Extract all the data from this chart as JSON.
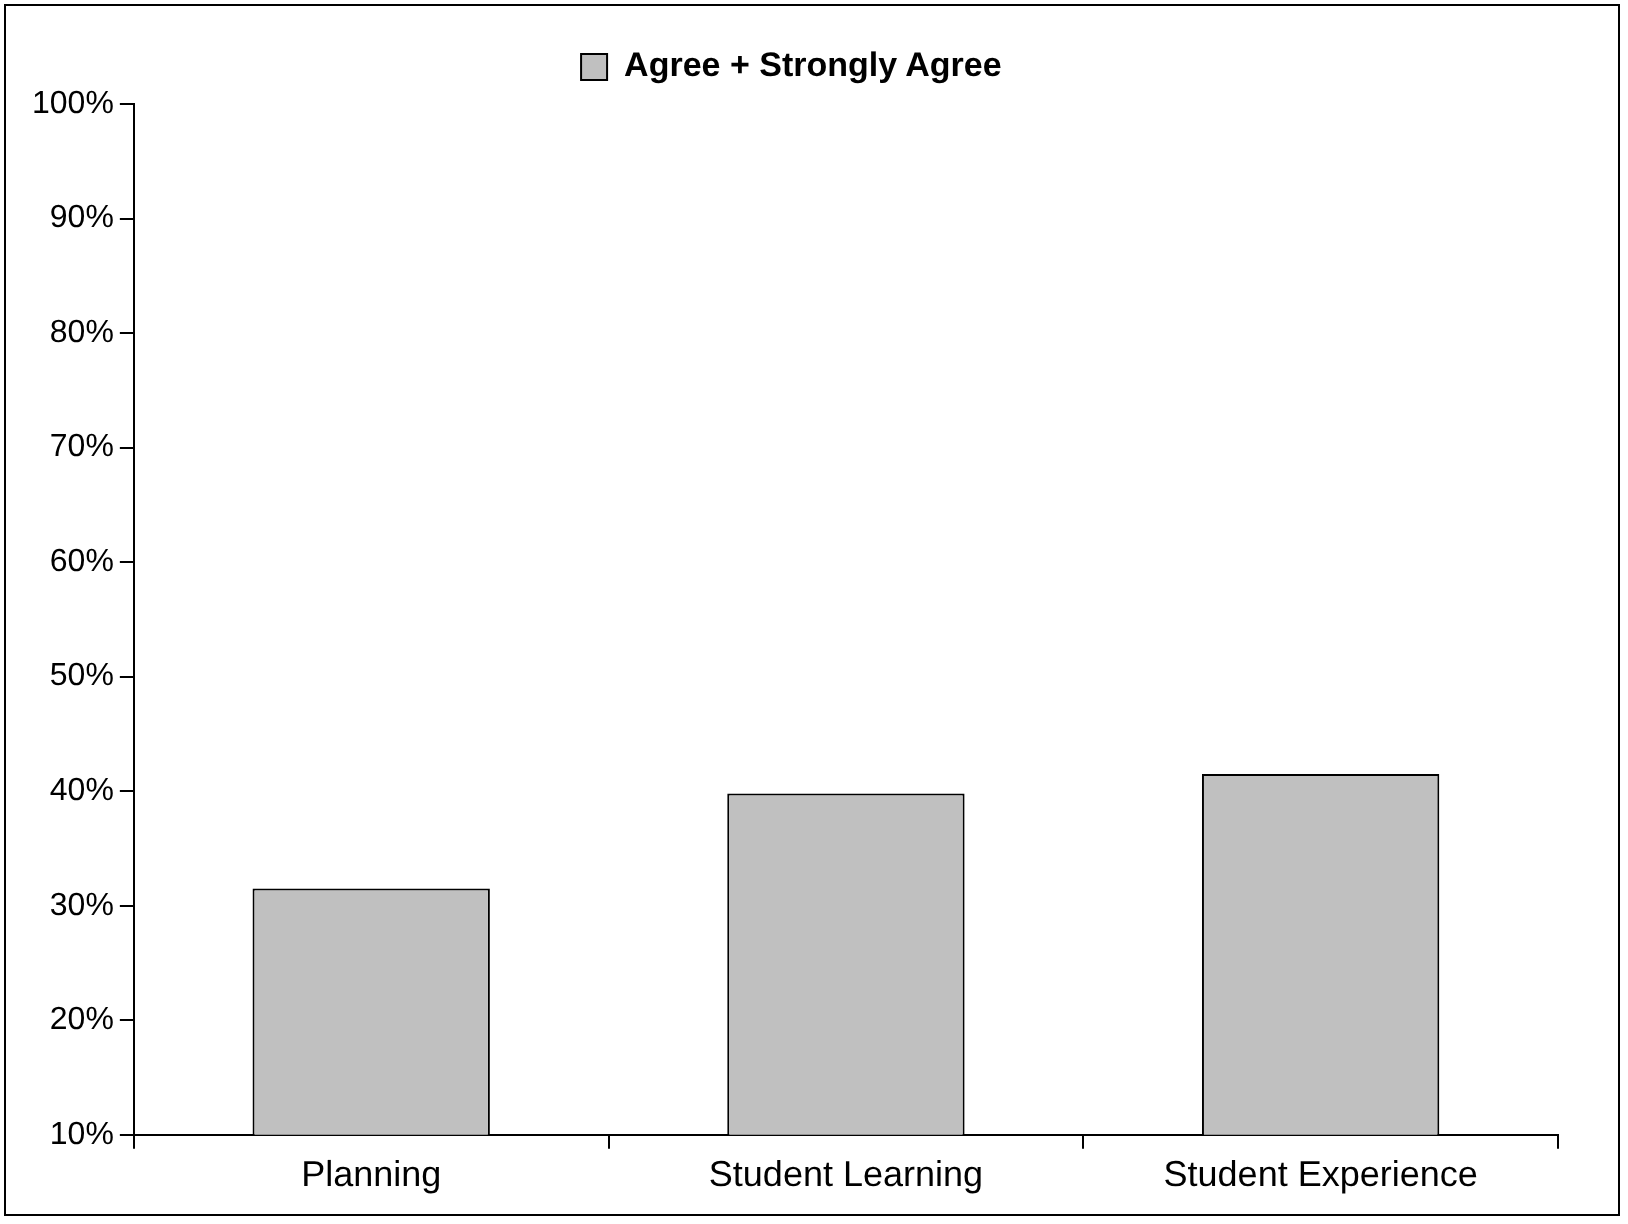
{
  "chart_data": {
    "type": "bar",
    "categories": [
      "Planning",
      "Student Learning",
      "Student Experience"
    ],
    "series": [
      {
        "name": "Agree + Strongly Agree",
        "color": "#c0c0c0",
        "values": [
          31.5,
          39.8,
          41.5
        ]
      }
    ],
    "ylim": [
      10,
      100
    ],
    "yticks": [
      {
        "value": 10,
        "label": "10%"
      },
      {
        "value": 20,
        "label": "20%"
      },
      {
        "value": 30,
        "label": "30%"
      },
      {
        "value": 40,
        "label": "40%"
      },
      {
        "value": 50,
        "label": "50%"
      },
      {
        "value": 60,
        "label": "60%"
      },
      {
        "value": 70,
        "label": "70%"
      },
      {
        "value": 80,
        "label": "80%"
      },
      {
        "value": 90,
        "label": "90%"
      },
      {
        "value": 100,
        "label": "100%"
      }
    ],
    "grid": false,
    "legend": "top"
  }
}
